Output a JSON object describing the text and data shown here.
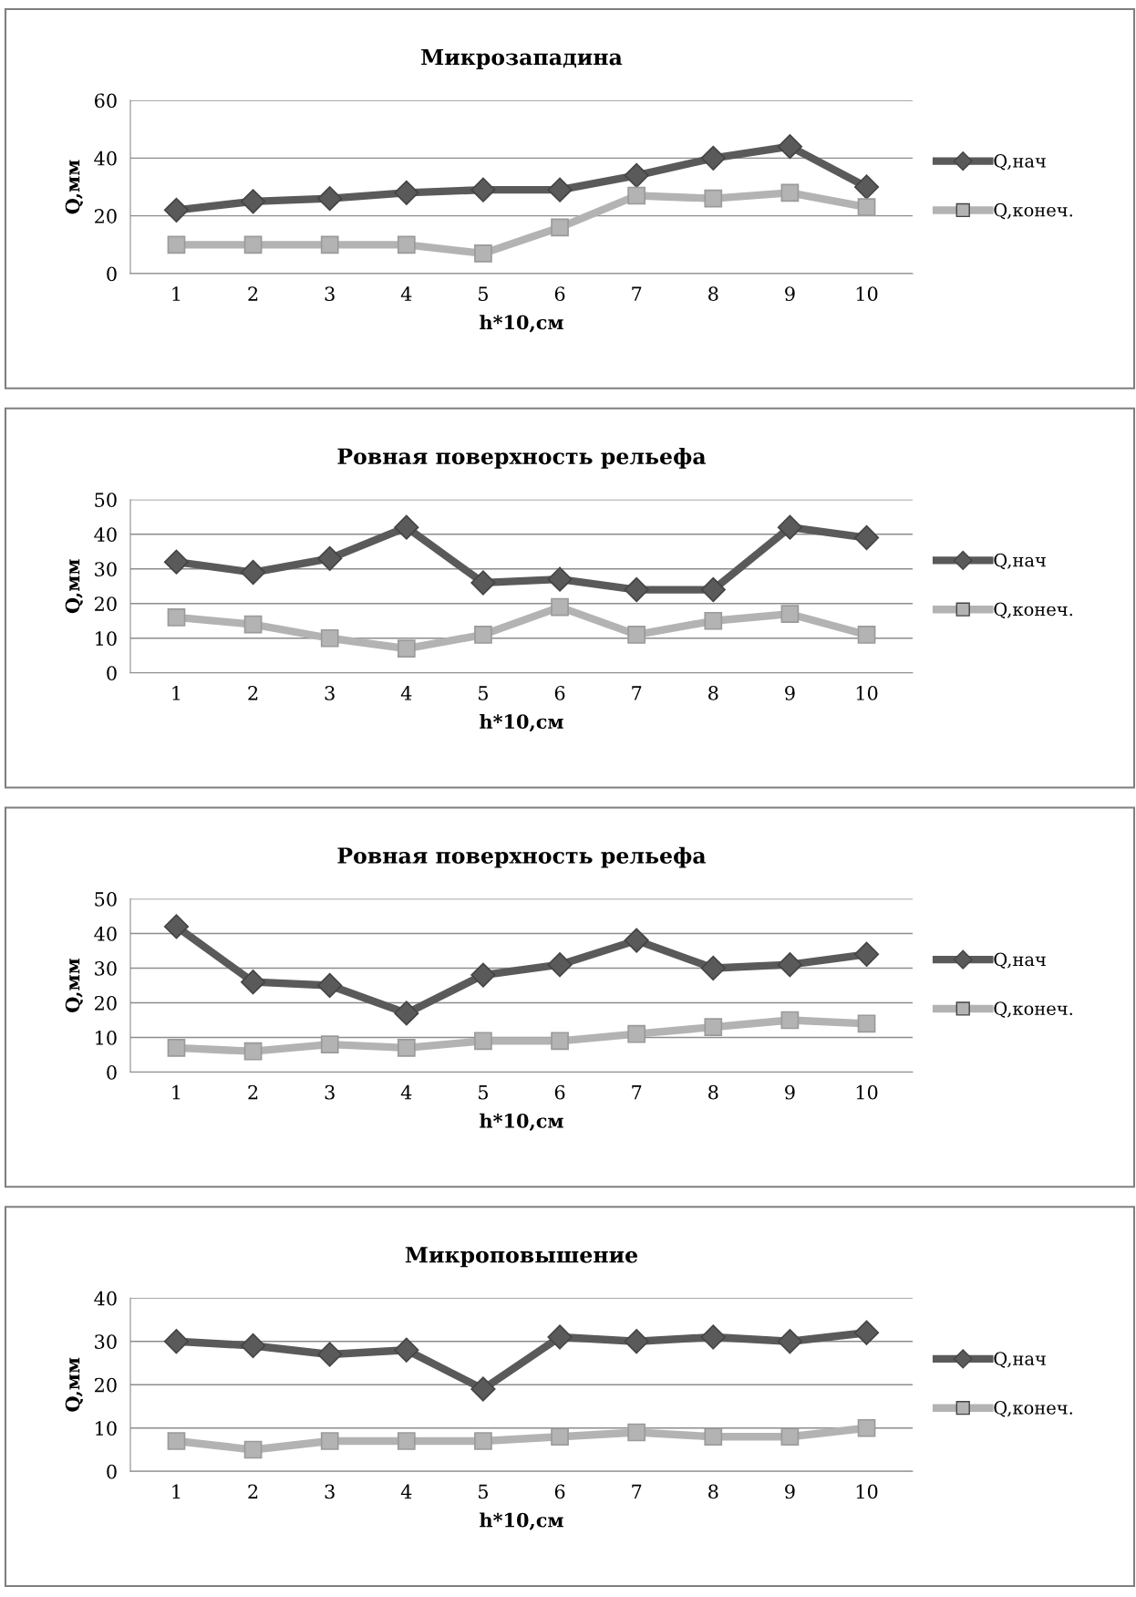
{
  "chart_data": [
    {
      "type": "line",
      "title": "Микрозападина",
      "xlabel": "h*10,см",
      "ylabel": "Q,мм",
      "categories": [
        "1",
        "2",
        "3",
        "4",
        "5",
        "6",
        "7",
        "8",
        "9",
        "10"
      ],
      "ylim": [
        0,
        60
      ],
      "yticks": [
        0,
        20,
        40,
        60
      ],
      "grid": "y",
      "legend": "right",
      "series": [
        {
          "name": "Q,нач",
          "color": "#5a5a5a",
          "marker": "diamond",
          "values": [
            22,
            25,
            26,
            28,
            29,
            29,
            34,
            40,
            44,
            30
          ]
        },
        {
          "name": "Q,конеч.",
          "color": "#b3b3b3",
          "marker": "square",
          "values": [
            10,
            10,
            10,
            10,
            7,
            16,
            27,
            26,
            28,
            23
          ]
        }
      ]
    },
    {
      "type": "line",
      "title": "Ровная поверхность рельефа",
      "xlabel": "h*10,см",
      "ylabel": "Q,мм",
      "categories": [
        "1",
        "2",
        "3",
        "4",
        "5",
        "6",
        "7",
        "8",
        "9",
        "10"
      ],
      "ylim": [
        0,
        50
      ],
      "yticks": [
        0,
        10,
        20,
        30,
        40,
        50
      ],
      "grid": "y",
      "legend": "right",
      "series": [
        {
          "name": "Q,нач",
          "color": "#5a5a5a",
          "marker": "diamond",
          "values": [
            32,
            29,
            33,
            42,
            26,
            27,
            24,
            24,
            42,
            39
          ]
        },
        {
          "name": "Q,конеч.",
          "color": "#b3b3b3",
          "marker": "square",
          "values": [
            16,
            14,
            10,
            7,
            11,
            19,
            11,
            15,
            17,
            11
          ]
        }
      ]
    },
    {
      "type": "line",
      "title": "Ровная поверхность рельефа",
      "xlabel": "h*10,см",
      "ylabel": "Q,мм",
      "categories": [
        "1",
        "2",
        "3",
        "4",
        "5",
        "6",
        "7",
        "8",
        "9",
        "10"
      ],
      "ylim": [
        0,
        50
      ],
      "yticks": [
        0,
        10,
        20,
        30,
        40,
        50
      ],
      "grid": "y",
      "legend": "right",
      "series": [
        {
          "name": "Q,нач",
          "color": "#5a5a5a",
          "marker": "diamond",
          "values": [
            42,
            26,
            25,
            17,
            28,
            31,
            38,
            30,
            31,
            34
          ]
        },
        {
          "name": "Q,конеч.",
          "color": "#b3b3b3",
          "marker": "square",
          "values": [
            7,
            6,
            8,
            7,
            9,
            9,
            11,
            13,
            15,
            14
          ]
        }
      ]
    },
    {
      "type": "line",
      "title": "Микроповышение",
      "xlabel": "h*10,см",
      "ylabel": "Q,мм",
      "categories": [
        "1",
        "2",
        "3",
        "4",
        "5",
        "6",
        "7",
        "8",
        "9",
        "10"
      ],
      "ylim": [
        0,
        40
      ],
      "yticks": [
        0,
        10,
        20,
        30,
        40
      ],
      "grid": "y",
      "legend": "right",
      "series": [
        {
          "name": "Q,нач",
          "color": "#5a5a5a",
          "marker": "diamond",
          "values": [
            30,
            29,
            27,
            28,
            19,
            31,
            30,
            31,
            30,
            32
          ]
        },
        {
          "name": "Q,конеч.",
          "color": "#b3b3b3",
          "marker": "square",
          "values": [
            7,
            5,
            7,
            7,
            7,
            8,
            9,
            8,
            8,
            10
          ]
        }
      ]
    }
  ]
}
